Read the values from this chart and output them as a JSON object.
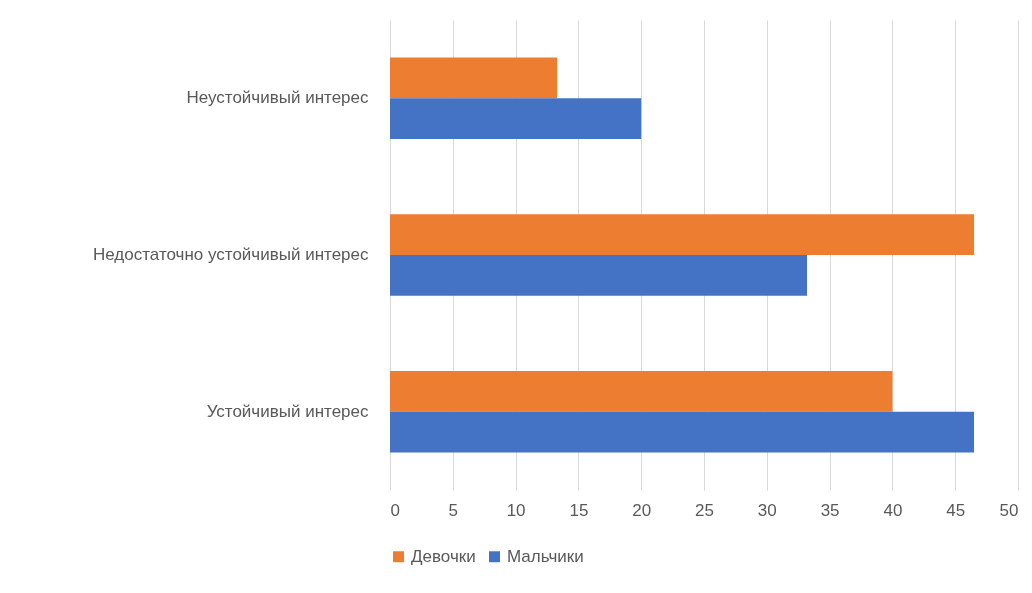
{
  "chart_data": {
    "type": "bar",
    "orientation": "horizontal",
    "categories": [
      "Неустойчивый интерес",
      "Недостаточно устойчивый интерес",
      "Устойчивый интерес"
    ],
    "series": [
      {
        "name": "Девочки",
        "color": "#ed7d31",
        "values": [
          13.3,
          46.5,
          40
        ]
      },
      {
        "name": "Мальчики",
        "color": "#4472c4",
        "values": [
          20,
          33.2,
          46.5
        ]
      }
    ],
    "xlim": [
      0,
      50
    ],
    "xticks": [
      0,
      5,
      10,
      15,
      20,
      25,
      30,
      35,
      40,
      45,
      50
    ],
    "grid": "x",
    "legend": "bottom"
  }
}
